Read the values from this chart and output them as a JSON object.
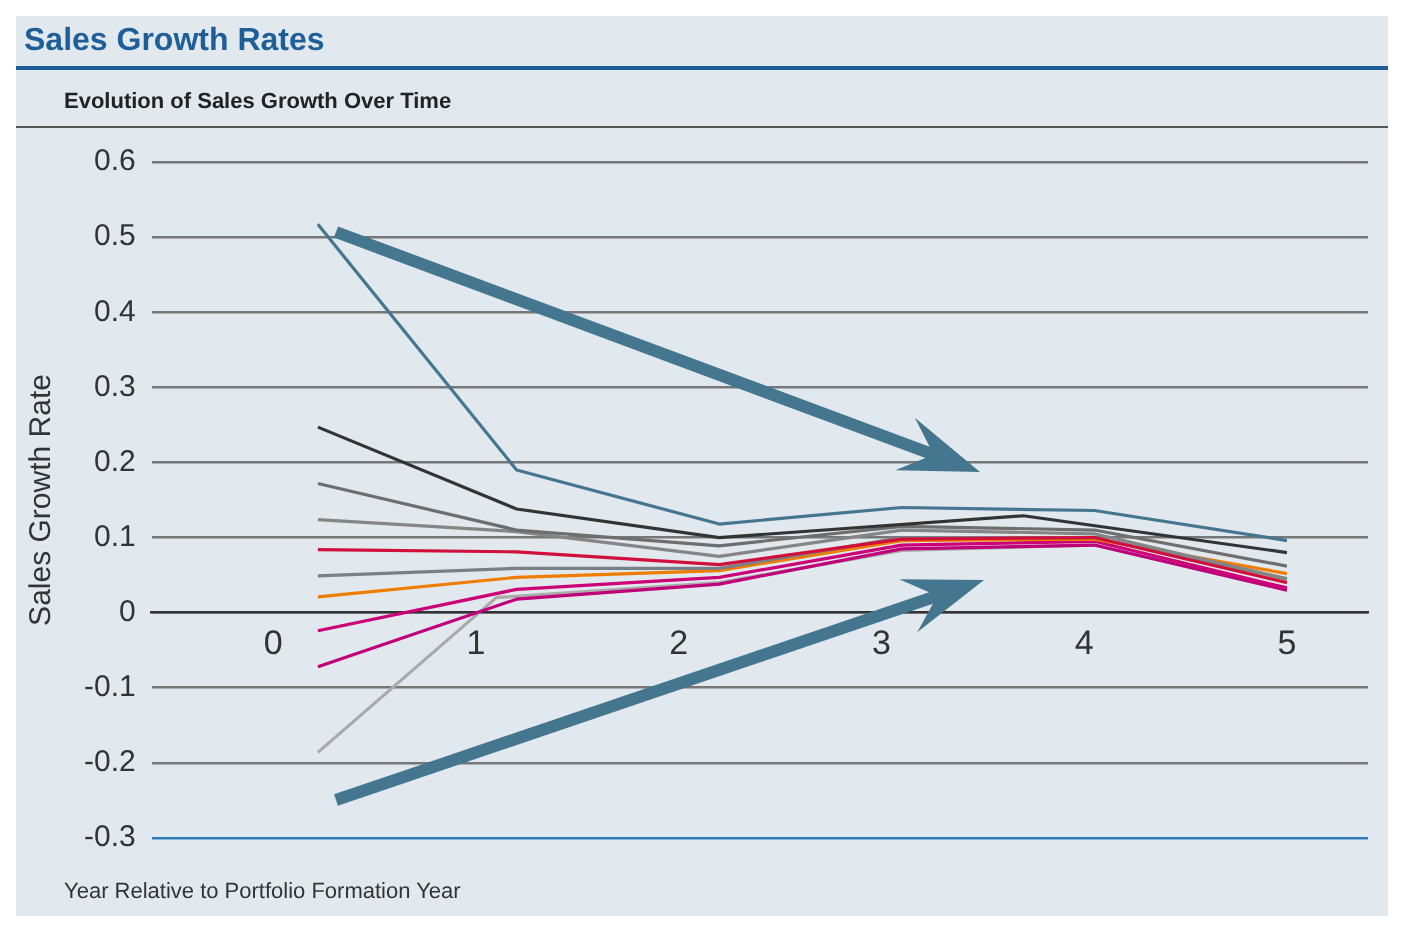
{
  "chart_data": {
    "type": "line",
    "title": "Sales Growth Rates",
    "subtitle": "Evolution of Sales Growth Over Time",
    "xlabel": "Year Relative to Portfolio Formation Year",
    "ylabel": "Sales Growth Rate",
    "x": [
      0.22,
      1.2,
      2.2,
      3.1,
      4.05,
      5.0
    ],
    "series": [
      {
        "color": "#44778f",
        "values": [
          0.517,
          0.19,
          0.118,
          0.14,
          0.136,
          0.096
        ]
      },
      {
        "color": "#333333",
        "x": [
          0.22,
          1.2,
          2.2,
          3.7,
          5.0
        ],
        "values": [
          0.247,
          0.138,
          0.1,
          0.129,
          0.08
        ]
      },
      {
        "color": "#6e6e6e",
        "values": [
          0.172,
          0.11,
          0.089,
          0.115,
          0.11,
          0.062
        ]
      },
      {
        "color": "#858585",
        "values": [
          0.124,
          0.108,
          0.075,
          0.11,
          0.105,
          0.045
        ]
      },
      {
        "color": "#d0103a",
        "values": [
          0.084,
          0.081,
          0.064,
          0.098,
          0.1,
          0.04
        ]
      },
      {
        "color": "#7a8088",
        "values": [
          0.049,
          0.059,
          0.059,
          0.1,
          0.1,
          0.045
        ]
      },
      {
        "color": "#f07d00",
        "values": [
          0.021,
          0.047,
          0.056,
          0.096,
          0.098,
          0.052
        ]
      },
      {
        "color": "#cc0077",
        "values": [
          -0.024,
          0.031,
          0.047,
          0.09,
          0.095,
          0.033
        ]
      },
      {
        "color": "#c0007a",
        "values": [
          -0.072,
          0.018,
          0.038,
          0.085,
          0.09,
          0.03
        ]
      },
      {
        "color": "#aaaaaa",
        "x": [
          0.22,
          1.1,
          2.2,
          3.1,
          4.05,
          5.0
        ],
        "values": [
          -0.186,
          0.02,
          0.04,
          0.083,
          0.09,
          0.03
        ]
      }
    ],
    "xlim": [
      -0.6,
      5.4
    ],
    "xticks": [
      0,
      1,
      2,
      3,
      4,
      5
    ],
    "ylim": [
      -0.3,
      0.6
    ],
    "yticks": [
      -0.3,
      -0.2,
      -0.1,
      0,
      0.1,
      0.2,
      0.3,
      0.4,
      0.5,
      0.6
    ],
    "grid": "y",
    "legend": false,
    "marker": "none",
    "line_style": "solid"
  }
}
